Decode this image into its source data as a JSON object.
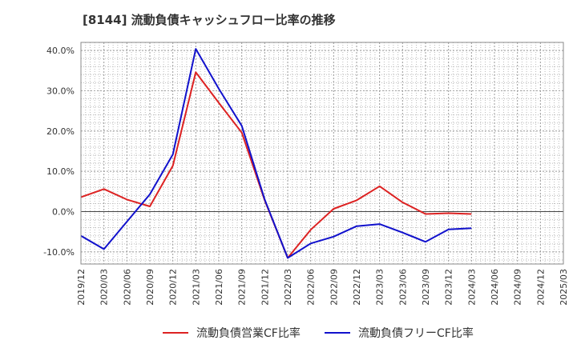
{
  "title": "[8144]  流動負債キャッシュフロー比率の推移",
  "chart_data": {
    "type": "line",
    "title": "[8144]  流動負債キャッシュフロー比率の推移",
    "xlabel": "",
    "ylabel": "",
    "ylim": [
      -13,
      42
    ],
    "yticks": [
      40,
      30,
      20,
      10,
      0,
      -10
    ],
    "ytick_labels": [
      "40.0%",
      "30.0%",
      "20.0%",
      "10.0%",
      "0.0%",
      "-10.0%"
    ],
    "x_tick_labels": [
      "2019/12",
      "2020/03",
      "2020/06",
      "2020/09",
      "2020/12",
      "2021/03",
      "2021/06",
      "2021/09",
      "2021/12",
      "2022/03",
      "2022/06",
      "2022/09",
      "2022/12",
      "2023/03",
      "2023/06",
      "2023/09",
      "2023/12",
      "2024/03",
      "2024/06",
      "2024/09",
      "2024/12",
      "2025/03"
    ],
    "grid": true,
    "legend_position": "bottom",
    "series": [
      {
        "name": "流動負債営業CF比率",
        "color": "#dd2222",
        "x": [
          "2019/12",
          "2020/03",
          "2020/06",
          "2020/09",
          "2020/12",
          "2021/03",
          "2021/06",
          "2021/09",
          "2021/12",
          "2022/03",
          "2022/06",
          "2022/09",
          "2022/12",
          "2023/03",
          "2023/06",
          "2023/09",
          "2023/12",
          "2024/03"
        ],
        "values": [
          3.6,
          5.6,
          3.0,
          1.3,
          11.4,
          34.6,
          27.0,
          19.6,
          2.8,
          -11.5,
          -4.5,
          0.7,
          2.8,
          6.3,
          2.3,
          -0.6,
          -0.4,
          -0.6
        ]
      },
      {
        "name": "流動負債フリーCF比率",
        "color": "#1111cc",
        "x": [
          "2019/12",
          "2020/03",
          "2020/06",
          "2020/09",
          "2020/12",
          "2021/03",
          "2021/06",
          "2021/09",
          "2021/12",
          "2022/03",
          "2022/06",
          "2022/09",
          "2022/12",
          "2023/03",
          "2023/06",
          "2023/09",
          "2023/12",
          "2024/03"
        ],
        "values": [
          -6.0,
          -9.3,
          -2.5,
          4.3,
          14.2,
          40.4,
          30.5,
          21.3,
          3.0,
          -11.5,
          -7.9,
          -6.2,
          -3.6,
          -3.1,
          -5.2,
          -7.5,
          -4.4,
          -4.1
        ]
      }
    ]
  }
}
